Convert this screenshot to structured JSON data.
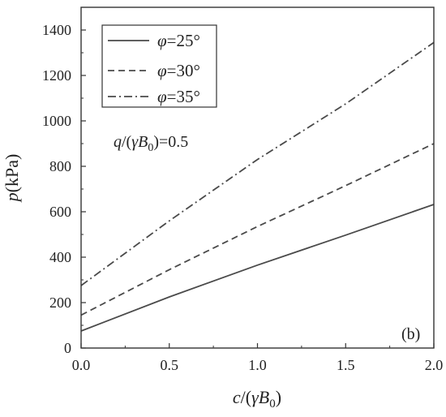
{
  "chart_data": {
    "type": "line",
    "title": "",
    "xlabel": {
      "italic": "c",
      "rest": "/(",
      "gamma": "γ",
      "B": "B",
      "sub": "0",
      "close": ")"
    },
    "ylabel": {
      "italic": "p",
      "rest": "(kPa)"
    },
    "xlim": [
      0.0,
      2.0
    ],
    "ylim": [
      0,
      1500
    ],
    "xticks": [
      0.0,
      0.5,
      1.0,
      1.5,
      2.0
    ],
    "xtick_labels": [
      "0.0",
      "0.5",
      "1.0",
      "1.5",
      "2.0"
    ],
    "yticks": [
      0,
      200,
      400,
      600,
      800,
      1000,
      1200,
      1400
    ],
    "ytick_labels": [
      "0",
      "200",
      "400",
      "600",
      "800",
      "1000",
      "1200",
      "1400"
    ],
    "grid": false,
    "legend_position": "top-left",
    "series": [
      {
        "name": "φ=25°",
        "phi": "φ",
        "label_rest": "=25°",
        "dash": "solid",
        "color": "#4a4a4a",
        "x": [
          0.0,
          0.5,
          1.0,
          1.5,
          2.0
        ],
        "y": [
          75,
          225,
          365,
          497,
          632
        ]
      },
      {
        "name": "φ=30°",
        "phi": "φ",
        "label_rest": "=30°",
        "dash": "dashed",
        "color": "#4a4a4a",
        "x": [
          0.0,
          0.5,
          1.0,
          1.5,
          2.0
        ],
        "y": [
          145,
          345,
          535,
          715,
          900
        ]
      },
      {
        "name": "φ=35°",
        "phi": "φ",
        "label_rest": "=35°",
        "dash": "dashdot",
        "color": "#4a4a4a",
        "x": [
          0.0,
          0.5,
          1.0,
          1.5,
          2.0
        ],
        "y": [
          275,
          560,
          830,
          1075,
          1345
        ]
      }
    ],
    "annotations": {
      "param": {
        "q": "q",
        "open": "/(",
        "gamma": "γ",
        "B": "B",
        "sub": "0",
        "close": ")=0.5"
      },
      "panel": "(b)"
    }
  }
}
